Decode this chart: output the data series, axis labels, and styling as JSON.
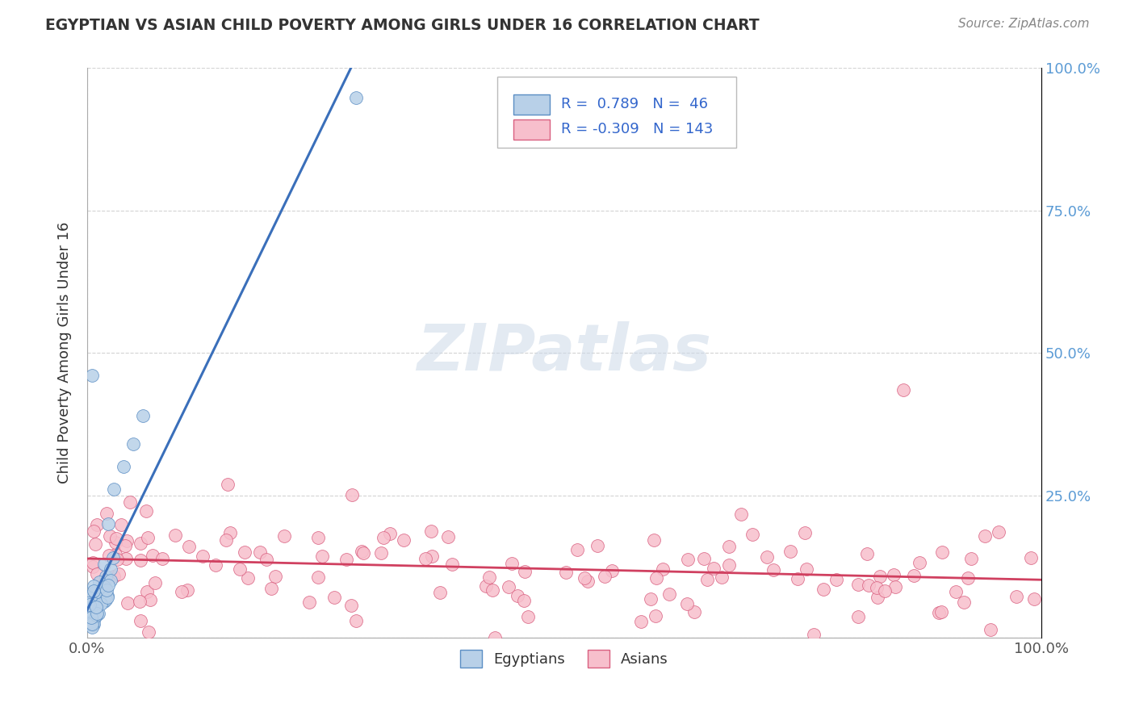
{
  "title": "EGYPTIAN VS ASIAN CHILD POVERTY AMONG GIRLS UNDER 16 CORRELATION CHART",
  "source": "Source: ZipAtlas.com",
  "ylabel": "Child Poverty Among Girls Under 16",
  "r_egyptian": 0.789,
  "n_egyptian": 46,
  "r_asian": -0.309,
  "n_asian": 143,
  "egyptian_color": "#b8d0e8",
  "egyptian_edge_color": "#5b8ec4",
  "egyptian_line_color": "#3a6fba",
  "asian_color": "#f7bfcc",
  "asian_edge_color": "#d96080",
  "asian_line_color": "#d04060",
  "background_color": "#ffffff",
  "grid_color": "#c8c8c8",
  "legend_text_color": "#3366cc",
  "right_ytick_color": "#5b9bd5",
  "xtick_color": "#555555"
}
